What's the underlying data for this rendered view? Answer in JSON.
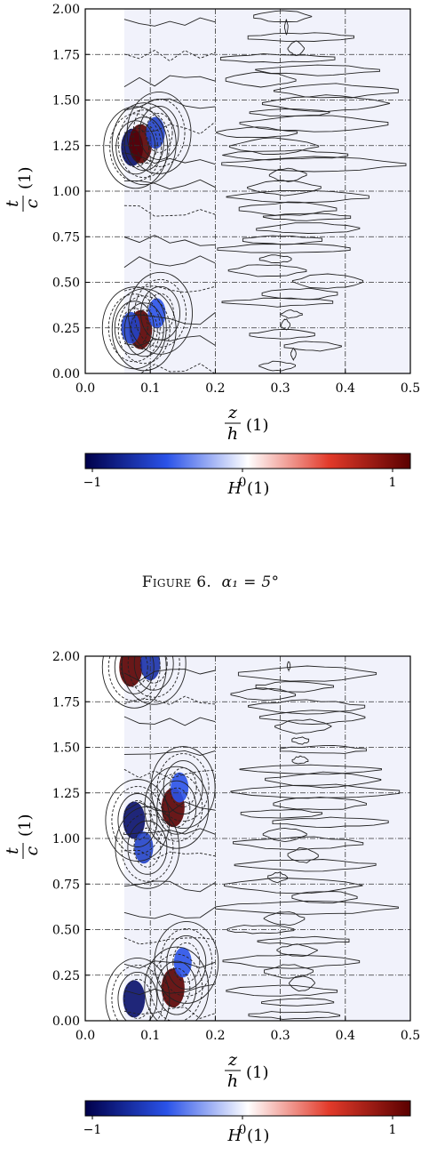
{
  "figures": [
    {
      "caption_label": "Figure 6.",
      "caption_math": "α₁ = 5°"
    },
    {
      "caption_label": "",
      "caption_math": ""
    }
  ],
  "chart_data": [
    {
      "type": "heatmap",
      "title": "",
      "xlabel_num": "z",
      "xlabel_den": "h",
      "xlabel_unit": "(1)",
      "ylabel_num": "t",
      "ylabel_den": "c",
      "ylabel_unit": "(1)",
      "xlim": [
        0.0,
        0.5
      ],
      "ylim": [
        0.0,
        2.0
      ],
      "x_ticks": [
        "0.0",
        "0.1",
        "0.2",
        "0.3",
        "0.4",
        "0.5"
      ],
      "y_ticks": [
        "0.00",
        "0.25",
        "0.50",
        "0.75",
        "1.00",
        "1.25",
        "1.50",
        "1.75",
        "2.00"
      ],
      "grid": true,
      "colorbar": {
        "label": "H (1)",
        "range": [
          -1,
          1
        ],
        "ticks": [
          "−1",
          "0",
          "1"
        ],
        "colors": [
          "#00004a",
          "#2a52e8",
          "#ffffff",
          "#e23a2a",
          "#5a0000"
        ]
      },
      "blobs": [
        {
          "x": 0.072,
          "y": 1.24,
          "value": -0.9
        },
        {
          "x": 0.085,
          "y": 1.26,
          "value": 1.0
        },
        {
          "x": 0.108,
          "y": 1.32,
          "value": -0.6
        },
        {
          "x": 0.085,
          "y": 0.24,
          "value": 1.0
        },
        {
          "x": 0.07,
          "y": 0.25,
          "value": -0.6
        },
        {
          "x": 0.11,
          "y": 0.33,
          "value": -0.5
        }
      ]
    },
    {
      "type": "heatmap",
      "title": "",
      "xlabel_num": "z",
      "xlabel_den": "h",
      "xlabel_unit": "(1)",
      "ylabel_num": "t",
      "ylabel_den": "c",
      "ylabel_unit": "(1)",
      "xlim": [
        0.0,
        0.5
      ],
      "ylim": [
        0.0,
        2.0
      ],
      "x_ticks": [
        "0.0",
        "0.1",
        "0.2",
        "0.3",
        "0.4",
        "0.5"
      ],
      "y_ticks": [
        "0.00",
        "0.25",
        "0.50",
        "0.75",
        "1.00",
        "1.25",
        "1.50",
        "1.75",
        "2.00"
      ],
      "grid": true,
      "colorbar": {
        "label": "H (1)",
        "range": [
          -1,
          1
        ],
        "ticks": [
          "−1",
          "0",
          "1"
        ],
        "colors": [
          "#00004a",
          "#2a52e8",
          "#ffffff",
          "#e23a2a",
          "#5a0000"
        ]
      },
      "blobs": [
        {
          "x": 0.07,
          "y": 1.94,
          "value": 1.0
        },
        {
          "x": 0.1,
          "y": 1.96,
          "value": -0.7
        },
        {
          "x": 0.075,
          "y": 1.1,
          "value": -0.9
        },
        {
          "x": 0.135,
          "y": 1.17,
          "value": 1.0
        },
        {
          "x": 0.09,
          "y": 0.95,
          "value": -0.6
        },
        {
          "x": 0.145,
          "y": 1.28,
          "value": -0.5
        },
        {
          "x": 0.075,
          "y": 0.12,
          "value": -0.9
        },
        {
          "x": 0.135,
          "y": 0.18,
          "value": 1.0
        },
        {
          "x": 0.15,
          "y": 0.32,
          "value": -0.5
        }
      ]
    }
  ]
}
